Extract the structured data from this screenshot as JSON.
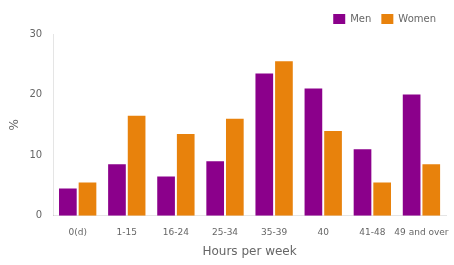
{
  "chart_data": {
    "type": "bar",
    "categories": [
      "0(d)",
      "1-15",
      "16-24",
      "25-34",
      "35-39",
      "40",
      "41-48",
      "49 and over"
    ],
    "series": [
      {
        "name": "Men",
        "color": "#8B008B",
        "values": [
          4.5,
          8.5,
          6.5,
          9.0,
          23.5,
          21.0,
          11.0,
          20.0
        ]
      },
      {
        "name": "Women",
        "color": "#E8820C",
        "values": [
          5.5,
          16.5,
          13.5,
          16.0,
          25.5,
          14.0,
          5.5,
          8.5
        ]
      }
    ],
    "xlabel": "Hours per week",
    "ylabel": "%",
    "ylim": [
      0,
      30
    ],
    "yticks": [
      0,
      10,
      20,
      30
    ],
    "grid": false,
    "legend": "upper right"
  }
}
